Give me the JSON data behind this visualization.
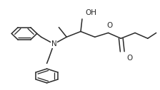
{
  "background_color": "#ffffff",
  "line_color": "#2a2a2a",
  "line_width": 1.1,
  "figsize": [
    2.24,
    1.27
  ],
  "dpi": 100,
  "labels": {
    "OH": "OH",
    "N": "N",
    "O_ester": "O",
    "O_carbonyl": "O"
  },
  "label_fontsize": 7.5
}
